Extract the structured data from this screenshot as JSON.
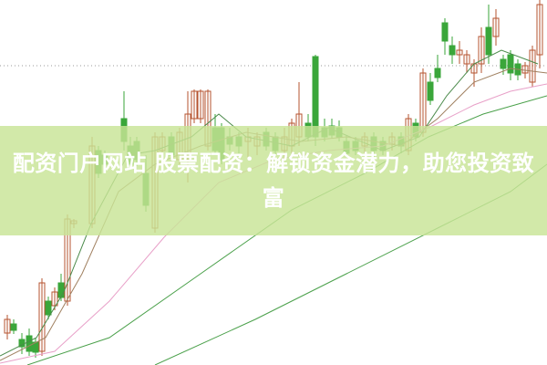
{
  "headline": "配资门户网站 股票配资：解锁资金潜力，助您投资致富",
  "colors": {
    "up_candle": "#b5532f",
    "down_candle": "#3aa63a",
    "ma_short": "#4a8a4a",
    "ma_mid": "#a08060",
    "ma_long": "#e8a0c8",
    "ma_longest": "#4aa04a",
    "banner": "#c8e496",
    "grid_line": "#999999"
  },
  "icons": [
    "candlestick-chart-picture"
  ]
}
